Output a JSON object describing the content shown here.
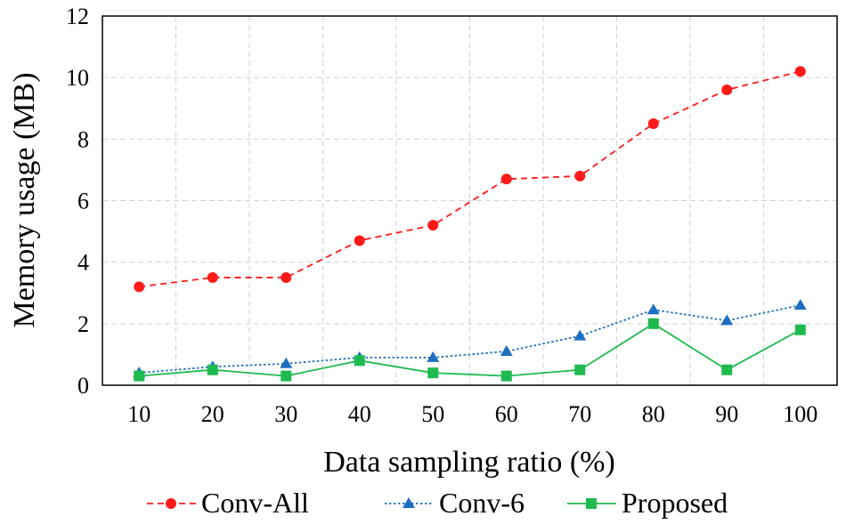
{
  "chart_data": {
    "type": "line",
    "title": "",
    "xlabel": "Data sampling ratio (%)",
    "ylabel": "Memory usage (MB)",
    "x": [
      10,
      20,
      30,
      40,
      50,
      60,
      70,
      80,
      90,
      100
    ],
    "x_tick_labels": [
      "10",
      "20",
      "30",
      "40",
      "50",
      "60",
      "70",
      "80",
      "90",
      "100"
    ],
    "ylim": [
      0,
      12
    ],
    "y_ticks": [
      0,
      2,
      4,
      6,
      8,
      10,
      12
    ],
    "y_tick_labels": [
      "0",
      "2",
      "4",
      "6",
      "8",
      "10",
      "12"
    ],
    "grid": true,
    "legend_position": "bottom",
    "series": [
      {
        "name": "Conv-All",
        "color": "#ff1a1a",
        "marker": "circle",
        "line_style": "dashed",
        "values": [
          3.2,
          3.5,
          3.5,
          4.7,
          5.2,
          6.7,
          6.8,
          8.5,
          9.6,
          10.2
        ]
      },
      {
        "name": "Conv-6",
        "color": "#1f6fc0",
        "marker": "triangle",
        "line_style": "dotted",
        "values": [
          0.4,
          0.6,
          0.7,
          0.9,
          0.9,
          1.1,
          1.6,
          2.45,
          2.1,
          2.6
        ]
      },
      {
        "name": "Proposed",
        "color": "#1fba4f",
        "marker": "square",
        "line_style": "solid",
        "values": [
          0.3,
          0.5,
          0.3,
          0.8,
          0.4,
          0.3,
          0.5,
          2.0,
          0.5,
          1.8
        ]
      }
    ]
  }
}
